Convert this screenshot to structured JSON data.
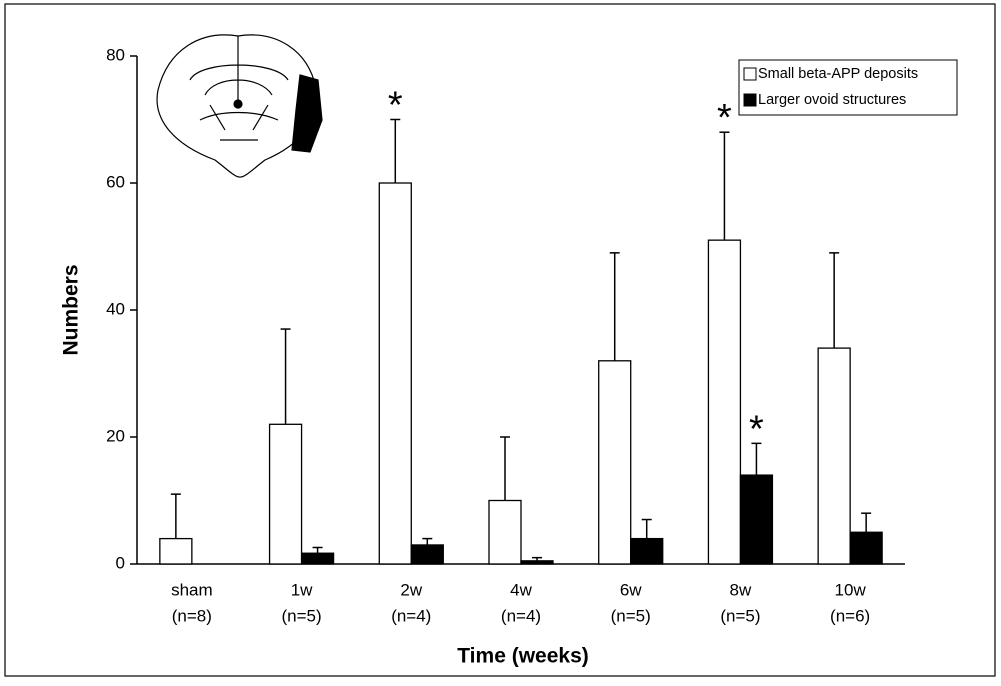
{
  "chart_data": {
    "type": "bar",
    "x_label": "Time (weeks)",
    "y_label": "Numbers",
    "categories": [
      "sham",
      "1w",
      "2w",
      "4w",
      "6w",
      "8w",
      "10w"
    ],
    "category_notes": [
      "(n=8)",
      "(n=5)",
      "(n=4)",
      "(n=4)",
      "(n=5)",
      "(n=5)",
      "(n=6)"
    ],
    "series": [
      {
        "name": "Small beta-APP deposits",
        "color": "#ffffff",
        "values": [
          4,
          22,
          60,
          10,
          32,
          51,
          34
        ],
        "errors": [
          7,
          15,
          10,
          10,
          17,
          17,
          15
        ],
        "annotations": [
          null,
          null,
          "*",
          null,
          null,
          "*",
          null
        ]
      },
      {
        "name": "Larger ovoid structures",
        "color": "#000000",
        "values": [
          0,
          1.7,
          3,
          0.5,
          4,
          14,
          5
        ],
        "errors": [
          null,
          0.9,
          1,
          0.5,
          3,
          5,
          3
        ],
        "annotations": [
          null,
          null,
          null,
          null,
          null,
          "*",
          null
        ]
      }
    ],
    "ylim": [
      0,
      80
    ],
    "yticks": [
      0,
      20,
      40,
      60,
      80
    ],
    "legend": "top-right"
  }
}
